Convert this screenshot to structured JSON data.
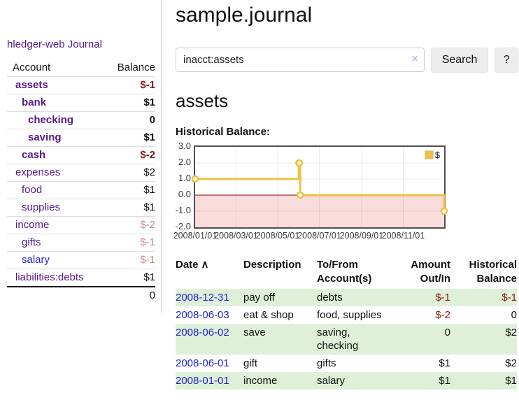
{
  "sidebar": {
    "app_title": "hledger-web",
    "journal_link": "Journal",
    "accounts": {
      "header_account": "Account",
      "header_balance": "Balance",
      "rows": [
        {
          "account": "assets",
          "balance": "$-1",
          "indent": 1,
          "bold": true,
          "neg": "strong"
        },
        {
          "account": "bank",
          "balance": "$1",
          "indent": 2,
          "bold": true
        },
        {
          "account": "checking",
          "balance": "0",
          "indent": 3,
          "bold": true
        },
        {
          "account": "saving",
          "balance": "$1",
          "indent": 3,
          "bold": true
        },
        {
          "account": "cash",
          "balance": "$-2",
          "indent": 2,
          "bold": true,
          "neg": "strong"
        },
        {
          "account": "expenses",
          "balance": "$2",
          "indent": 1
        },
        {
          "account": "food",
          "balance": "$1",
          "indent": 2
        },
        {
          "account": "supplies",
          "balance": "$1",
          "indent": 2
        },
        {
          "account": "income",
          "balance": "$-2",
          "indent": 1,
          "neg": "light"
        },
        {
          "account": "gifts",
          "balance": "$-1",
          "indent": 2,
          "neg": "light"
        },
        {
          "account": "salary",
          "balance": "$-1",
          "indent": 2,
          "neg": "light",
          "link_blue": true
        },
        {
          "account": "liabilities:debts",
          "balance": "$1",
          "indent": 1
        }
      ],
      "total": "0"
    }
  },
  "main": {
    "title": "sample.journal",
    "search": {
      "value": "inacct:assets",
      "clear_icon": "×",
      "search_button": "Search",
      "help_button": "?"
    },
    "account_heading": "assets",
    "chart_label": "Historical Balance:"
  },
  "chart_data": {
    "type": "line",
    "step": true,
    "title": "Historical Balance:",
    "series": [
      {
        "name": "$",
        "color": "#edc240",
        "points": [
          [
            "2008/01/01",
            1
          ],
          [
            "2008/06/01",
            2
          ],
          [
            "2008/06/02",
            2
          ],
          [
            "2008/06/03",
            0
          ],
          [
            "2008/12/31",
            -1
          ]
        ]
      }
    ],
    "x_range": [
      "2008/01/01",
      "2008/12/31"
    ],
    "x_ticks": [
      "2008/01/01",
      "2008/03/01",
      "2008/05/01",
      "2008/07/01",
      "2008/09/01",
      "2008/11/01"
    ],
    "y_ticks": [
      "3.0",
      "2.0",
      "1.0",
      "0.0",
      "-1.0",
      "-2.0"
    ],
    "ylim": [
      -2,
      3
    ],
    "grid": true,
    "legend_position": "top-right",
    "legend_label": "$",
    "negative_region_fill": "#fadcdc",
    "zero_line_color": "#8b0000"
  },
  "register": {
    "headers": {
      "date": "Date",
      "sort_icon": "∧",
      "description": "Description",
      "accounts": "To/From Account(s)",
      "amount": "Amount Out/In",
      "balance": "Historical Balance"
    },
    "rows": [
      {
        "date": "2008-12-31",
        "description": "pay off",
        "accounts": "debts",
        "amount": "$-1",
        "balance": "$-1",
        "amount_neg": true,
        "balance_neg": true,
        "shade": true
      },
      {
        "date": "2008-06-03",
        "description": "eat & shop",
        "accounts": "food, supplies",
        "amount": "$-2",
        "balance": "0",
        "amount_neg": true,
        "shade": false
      },
      {
        "date": "2008-06-02",
        "description": "save",
        "accounts": "saving, checking",
        "amount": "0",
        "balance": "$2",
        "shade": true
      },
      {
        "date": "2008-06-01",
        "description": "gift",
        "accounts": "gifts",
        "amount": "$1",
        "balance": "$2",
        "shade": false
      },
      {
        "date": "2008-01-01",
        "description": "income",
        "accounts": "salary",
        "amount": "$1",
        "balance": "$1",
        "shade": true
      }
    ]
  }
}
